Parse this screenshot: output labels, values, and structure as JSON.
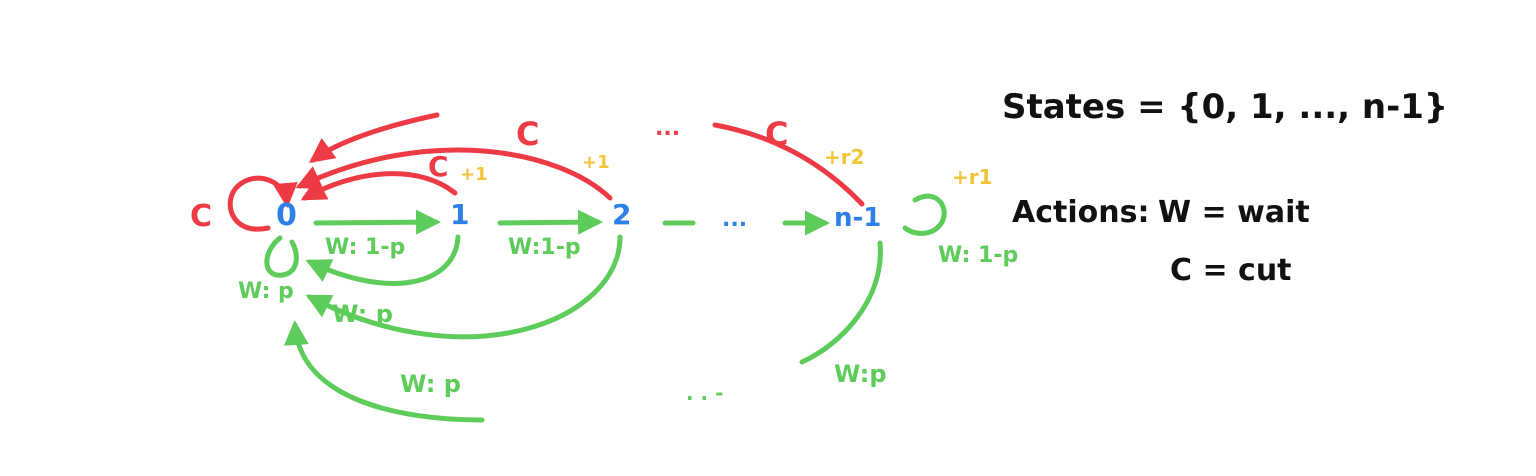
{
  "colors": {
    "red": "#ee3a45",
    "green": "#5dcc5a",
    "blue": "#2e7fe8",
    "yellow": "#f3c33a",
    "black": "#111111"
  },
  "states": [
    "0",
    "1",
    "2",
    "...",
    "n-1"
  ],
  "transitions": {
    "wait_forward_label": "W: 1-p",
    "wait_forward_label_2": "W:1-p",
    "wait_self_last_label": "W: 1-p",
    "wait_reset_label": "W: p",
    "wait_reset_label_2": "W:p",
    "cut_label": "C",
    "dots_mid": "...",
    "dots_bottom": ". . -"
  },
  "rewards": {
    "r1_a": "+1",
    "r1_b": "+1",
    "rn2": "+r2",
    "rn1": "+r1"
  },
  "legend": {
    "states_line": "States = {0, 1, ..., n-1}",
    "actions_prefix": "Actions:",
    "wait_def": "W = wait",
    "cut_def": "C = cut"
  }
}
